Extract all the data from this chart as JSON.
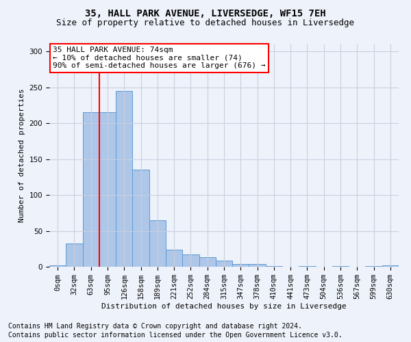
{
  "title": "35, HALL PARK AVENUE, LIVERSEDGE, WF15 7EH",
  "subtitle": "Size of property relative to detached houses in Liversedge",
  "xlabel": "Distribution of detached houses by size in Liversedge",
  "ylabel": "Number of detached properties",
  "bar_color": "#aec6e8",
  "bar_edge_color": "#5b9bd5",
  "background_color": "#eef2fa",
  "grid_color": "#c8d0e0",
  "categories": [
    "0sqm",
    "32sqm",
    "63sqm",
    "95sqm",
    "126sqm",
    "158sqm",
    "189sqm",
    "221sqm",
    "252sqm",
    "284sqm",
    "315sqm",
    "347sqm",
    "378sqm",
    "410sqm",
    "441sqm",
    "473sqm",
    "504sqm",
    "536sqm",
    "567sqm",
    "599sqm",
    "630sqm"
  ],
  "values": [
    2,
    32,
    216,
    216,
    245,
    135,
    65,
    24,
    17,
    13,
    9,
    4,
    4,
    1,
    0,
    1,
    0,
    1,
    0,
    1,
    2
  ],
  "annotation_box_text": "35 HALL PARK AVENUE: 74sqm\n← 10% of detached houses are smaller (74)\n90% of semi-detached houses are larger (676) →",
  "red_line_x": 2.5,
  "ylim": [
    0,
    310
  ],
  "yticks": [
    0,
    50,
    100,
    150,
    200,
    250,
    300
  ],
  "footer1": "Contains HM Land Registry data © Crown copyright and database right 2024.",
  "footer2": "Contains public sector information licensed under the Open Government Licence v3.0.",
  "title_fontsize": 10,
  "subtitle_fontsize": 9,
  "axis_label_fontsize": 8,
  "tick_fontsize": 7.5,
  "annotation_fontsize": 8,
  "footer_fontsize": 7
}
